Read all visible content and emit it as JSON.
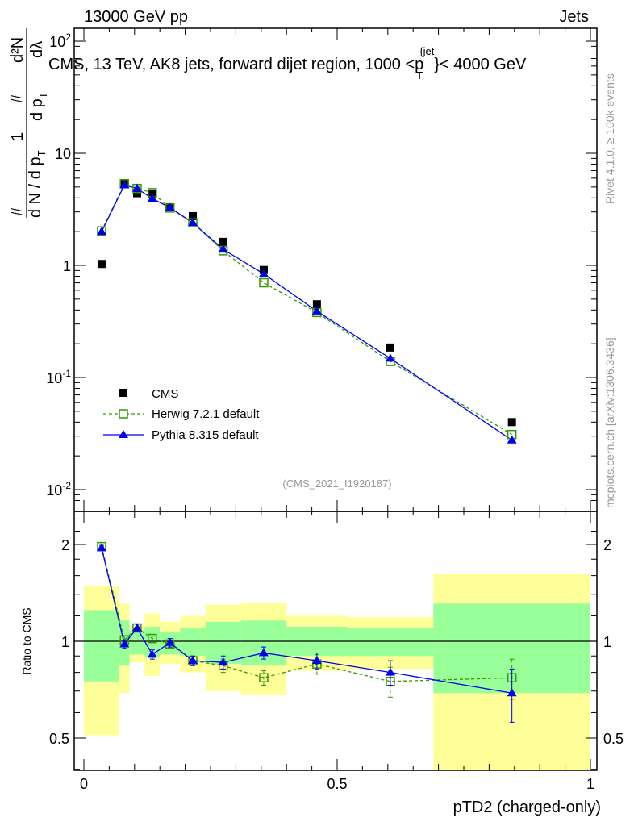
{
  "header": {
    "left": "13000 GeV pp",
    "right": "Jets"
  },
  "side_labels": {
    "rivet": "Rivet 4.1.0, ≥ 100k events",
    "mcplots": "mcplots.cern.ch [arXiv:1306.3436]"
  },
  "watermark": "(CMS_2021_I1920187)",
  "colors": {
    "cms": "#000000",
    "herwig": "#339900",
    "pythia": "#0000ee",
    "band_outer": "#ffff99",
    "band_inner": "#99ff99"
  },
  "chart_data": [
    {
      "type": "scatter",
      "title": "CMS, 13 TeV, AK8 jets, forward dijet region, 1000 <p_T^{jet}< 4000 GeV",
      "title_parts": {
        "main": "CMS, 13 TeV, AK8 jets, forward dijet region, 1000 <p",
        "sup": "{jet",
        "sub": "T",
        "tail": "}< 4000 GeV"
      },
      "ylabel": "1/N dN/dp_T  d²N/dp_T dλ",
      "ylabel_parts": [
        "1",
        "d N / d p",
        "T",
        "#",
        "d p",
        "T",
        "dλ",
        "d²N",
        "#"
      ],
      "yscale": "log",
      "ylim": [
        0.005,
        150
      ],
      "yticks": [
        {
          "v": 0.01,
          "base": "10",
          "exp": "-2"
        },
        {
          "v": 0.1,
          "base": "10",
          "exp": "-1"
        },
        {
          "v": 1,
          "base": "1",
          "exp": ""
        },
        {
          "v": 10,
          "base": "10",
          "exp": ""
        },
        {
          "v": 100,
          "base": "10",
          "exp": "2"
        }
      ],
      "xlim": [
        0,
        1
      ],
      "legend": {
        "placement": "bottom-left",
        "entries": [
          "CMS",
          "Herwig 7.2.1 default",
          "Pythia 8.315 default"
        ]
      },
      "x": [
        0.035,
        0.08,
        0.105,
        0.135,
        0.17,
        0.215,
        0.275,
        0.355,
        0.46,
        0.605,
        0.845
      ],
      "series": [
        {
          "name": "CMS",
          "values": [
            1.03,
            5.3,
            4.4,
            4.35,
            3.3,
            2.75,
            1.62,
            0.91,
            0.45,
            0.185,
            0.04
          ]
        },
        {
          "name": "Herwig 7.2.1 default",
          "values": [
            2.03,
            5.35,
            4.85,
            4.45,
            3.25,
            2.4,
            1.35,
            0.7,
            0.38,
            0.139,
            0.031
          ]
        },
        {
          "name": "Pythia 8.315 default",
          "values": [
            2.0,
            5.2,
            4.85,
            3.95,
            3.27,
            2.4,
            1.39,
            0.84,
            0.39,
            0.148,
            0.0276
          ]
        }
      ]
    },
    {
      "type": "scatter",
      "ylabel": "Ratio to CMS",
      "xlabel": "pTD2 (charged-only)",
      "yscale": "log2",
      "ylim": [
        0.4,
        2.5
      ],
      "yticks": [
        {
          "v": 0.5,
          "label": "0.5"
        },
        {
          "v": 1,
          "label": "1"
        },
        {
          "v": 2,
          "label": "2"
        }
      ],
      "xticks": [
        {
          "v": 0,
          "label": "0"
        },
        {
          "v": 0.5,
          "label": "0.5"
        },
        {
          "v": 1,
          "label": "1"
        }
      ],
      "bin_edges": [
        0,
        0.07,
        0.09,
        0.12,
        0.15,
        0.19,
        0.24,
        0.31,
        0.4,
        0.52,
        0.69,
        1.0
      ],
      "band_outer": [
        [
          0.51,
          1.49
        ],
        [
          0.69,
          1.31
        ],
        [
          0.86,
          1.12
        ],
        [
          0.78,
          1.22
        ],
        [
          0.85,
          1.15
        ],
        [
          0.8,
          1.2
        ],
        [
          0.7,
          1.3
        ],
        [
          0.68,
          1.32
        ],
        [
          0.81,
          1.2
        ],
        [
          0.82,
          1.19
        ],
        [
          0.3,
          1.62
        ]
      ],
      "band_inner": [
        [
          0.75,
          1.25
        ],
        [
          0.84,
          1.16
        ],
        [
          0.91,
          1.08
        ],
        [
          0.89,
          1.11
        ],
        [
          0.91,
          1.07
        ],
        [
          0.9,
          1.1
        ],
        [
          0.85,
          1.15
        ],
        [
          0.84,
          1.16
        ],
        [
          0.9,
          1.11
        ],
        [
          0.9,
          1.1
        ],
        [
          0.69,
          1.31
        ]
      ],
      "x": [
        0.035,
        0.08,
        0.105,
        0.135,
        0.17,
        0.215,
        0.275,
        0.355,
        0.46,
        0.605,
        0.845
      ],
      "series": [
        {
          "name": "Herwig 7.2.1 default",
          "values": [
            1.97,
            1.01,
            1.1,
            1.02,
            0.98,
            0.87,
            0.84,
            0.77,
            0.85,
            0.75,
            0.77
          ],
          "errors": [
            0.03,
            0.03,
            0.03,
            0.03,
            0.03,
            0.03,
            0.04,
            0.04,
            0.06,
            0.08,
            0.11
          ]
        },
        {
          "name": "Pythia 8.315 default",
          "values": [
            1.95,
            0.98,
            1.1,
            0.91,
            0.99,
            0.87,
            0.86,
            0.92,
            0.87,
            0.8,
            0.69
          ],
          "errors": [
            0.03,
            0.03,
            0.03,
            0.03,
            0.03,
            0.03,
            0.04,
            0.04,
            0.05,
            0.07,
            0.13
          ]
        }
      ]
    }
  ]
}
